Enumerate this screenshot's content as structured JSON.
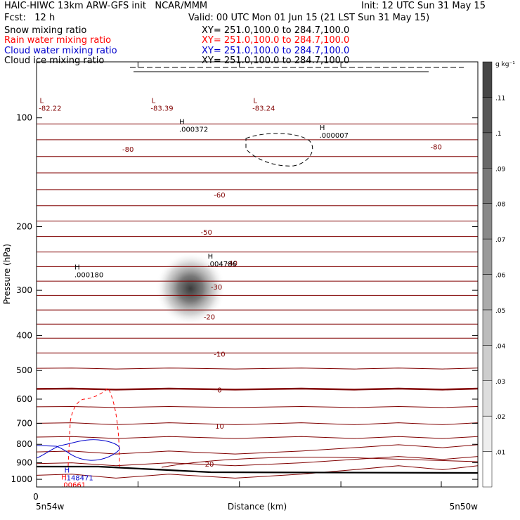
{
  "header": {
    "title": "HAIC-HIWC 13km ARW-GFS init   NCAR/MMM",
    "init": "Init: 12 UTC Sun 31 May 15",
    "fcst": "Fcst:   12 h",
    "valid": "Valid: 00 UTC Mon 01 Jun 15 (21 LST Sun 31 May 15)",
    "fields": [
      {
        "name": "Snow mixing ratio",
        "xy": "XY= 251.0,100.0 to 284.7,100.0",
        "color": "#000000"
      },
      {
        "name": "Rain water mixing ratio",
        "xy": "XY= 251.0,100.0 to 284.7,100.0",
        "color": "#ff0000"
      },
      {
        "name": "Cloud water mixing ratio",
        "xy": "XY= 251.0,100.0 to 284.7,100.0",
        "color": "#0000cc"
      },
      {
        "name": "Cloud ice mixing ratio",
        "xy": "XY= 251.0,100.0 to 284.7,100.0",
        "color": "#000000"
      }
    ]
  },
  "chart_data": {
    "type": "contour",
    "xlabel": "Distance (km)",
    "ylabel": "Pressure (hPa)",
    "x_ticks": [
      {
        "value": 0,
        "label": "0"
      }
    ],
    "x_endpoint_labels": [
      "5n54w",
      "5n50w"
    ],
    "xlim": [
      0,
      434
    ],
    "ylim": [
      1050,
      70
    ],
    "y_scale": "log",
    "y_ticks": [
      100,
      200,
      300,
      400,
      500,
      600,
      700,
      800,
      900,
      1000
    ],
    "colorbar": {
      "unit": "g kg⁻¹",
      "levels": [
        ".01",
        ".02",
        ".03",
        ".04",
        ".05",
        ".06",
        ".07",
        ".08",
        ".09",
        ".1",
        ".11"
      ],
      "placement": "right"
    },
    "temperature_contours": {
      "color": "#800000",
      "levels": [
        -80,
        -70,
        -60,
        -50,
        -40,
        -30,
        -20,
        -10,
        0,
        10,
        20
      ],
      "labels": [
        {
          "text": "-80",
          "x": 90,
          "p": 122
        },
        {
          "text": "-80",
          "x": 393,
          "p": 120
        },
        {
          "text": "-60",
          "x": 180,
          "p": 163
        },
        {
          "text": "-50",
          "x": 167,
          "p": 207
        },
        {
          "text": "-40",
          "x": 192,
          "p": 252
        },
        {
          "text": "-30",
          "x": 177,
          "p": 293
        },
        {
          "text": "-20",
          "x": 170,
          "p": 355
        },
        {
          "text": "-10",
          "x": 180,
          "p": 450
        },
        {
          "text": "0",
          "x": 180,
          "p": 565
        },
        {
          "text": "10",
          "x": 180,
          "p": 712
        },
        {
          "text": "20",
          "x": 170,
          "p": 905
        }
      ]
    },
    "extrema": [
      {
        "type": "L",
        "value": "-82.22",
        "x": 5,
        "p": 91,
        "color": "#800000"
      },
      {
        "type": "L",
        "value": "-83.39",
        "x": 115,
        "p": 91,
        "color": "#800000"
      },
      {
        "type": "L",
        "value": "-83.24",
        "x": 215,
        "p": 91,
        "color": "#800000"
      },
      {
        "type": "H",
        "value": ".000372",
        "x": 143,
        "p": 104,
        "color": "#000000"
      },
      {
        "type": "H",
        "value": ".000007",
        "x": 281,
        "p": 108,
        "color": "#000000"
      },
      {
        "type": "H",
        "value": ".000180",
        "x": 40,
        "p": 263,
        "color": "#000000"
      },
      {
        "type": "H",
        "value": ".004786",
        "x": 171,
        "p": 245,
        "color": "#000000"
      },
      {
        "type": "H",
        "value": ".148471",
        "x": 30,
        "p": 958,
        "color": "#0000cc"
      },
      {
        "type": "H",
        "value": ".00661",
        "x": 27,
        "p": 1002,
        "color": "#ff0000"
      }
    ],
    "cloud_ice_max": {
      "x": 150,
      "p": 305,
      "value": 0.11
    }
  }
}
